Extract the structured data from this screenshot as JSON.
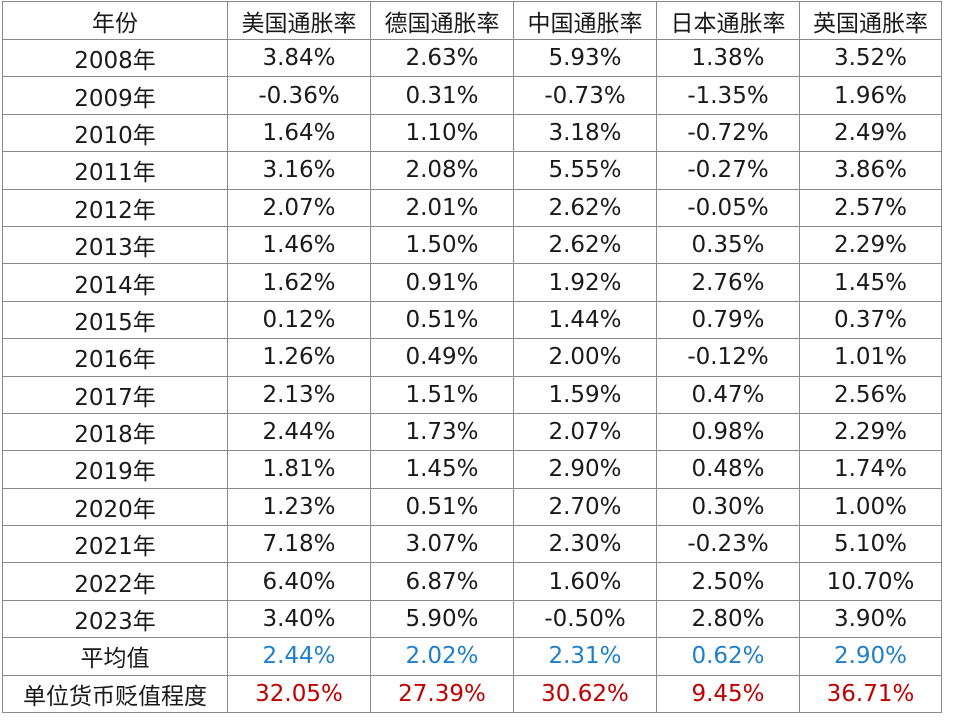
{
  "table": {
    "headers": [
      "年份",
      "美国通胀率",
      "德国通胀率",
      "中国通胀率",
      "日本通胀率",
      "英国通胀率"
    ],
    "rows": [
      {
        "year": "2008年",
        "values": [
          "3.84%",
          "2.63%",
          "5.93%",
          "1.38%",
          "3.52%"
        ]
      },
      {
        "year": "2009年",
        "values": [
          "-0.36%",
          "0.31%",
          "-0.73%",
          "-1.35%",
          "1.96%"
        ]
      },
      {
        "year": "2010年",
        "values": [
          "1.64%",
          "1.10%",
          "3.18%",
          "-0.72%",
          "2.49%"
        ]
      },
      {
        "year": "2011年",
        "values": [
          "3.16%",
          "2.08%",
          "5.55%",
          "-0.27%",
          "3.86%"
        ]
      },
      {
        "year": "2012年",
        "values": [
          "2.07%",
          "2.01%",
          "2.62%",
          "-0.05%",
          "2.57%"
        ]
      },
      {
        "year": "2013年",
        "values": [
          "1.46%",
          "1.50%",
          "2.62%",
          "0.35%",
          "2.29%"
        ]
      },
      {
        "year": "2014年",
        "values": [
          "1.62%",
          "0.91%",
          "1.92%",
          "2.76%",
          "1.45%"
        ]
      },
      {
        "year": "2015年",
        "values": [
          "0.12%",
          "0.51%",
          "1.44%",
          "0.79%",
          "0.37%"
        ]
      },
      {
        "year": "2016年",
        "values": [
          "1.26%",
          "0.49%",
          "2.00%",
          "-0.12%",
          "1.01%"
        ]
      },
      {
        "year": "2017年",
        "values": [
          "2.13%",
          "1.51%",
          "1.59%",
          "0.47%",
          "2.56%"
        ]
      },
      {
        "year": "2018年",
        "values": [
          "2.44%",
          "1.73%",
          "2.07%",
          "0.98%",
          "2.29%"
        ]
      },
      {
        "year": "2019年",
        "values": [
          "1.81%",
          "1.45%",
          "2.90%",
          "0.48%",
          "1.74%"
        ]
      },
      {
        "year": "2020年",
        "values": [
          "1.23%",
          "0.51%",
          "2.70%",
          "0.30%",
          "1.00%"
        ]
      },
      {
        "year": "2021年",
        "values": [
          "7.18%",
          "3.07%",
          "2.30%",
          "-0.23%",
          "5.10%"
        ]
      },
      {
        "year": "2022年",
        "values": [
          "6.40%",
          "6.87%",
          "1.60%",
          "2.50%",
          "10.70%"
        ]
      },
      {
        "year": "2023年",
        "values": [
          "3.40%",
          "5.90%",
          "-0.50%",
          "2.80%",
          "3.90%"
        ]
      }
    ],
    "average": {
      "label": "平均值",
      "values": [
        "2.44%",
        "2.02%",
        "2.31%",
        "0.62%",
        "2.90%"
      ]
    },
    "devaluation": {
      "label": "单位货币贬值程度",
      "values": [
        "32.05%",
        "27.39%",
        "30.62%",
        "9.45%",
        "36.71%"
      ]
    }
  },
  "colors": {
    "average_text": "#1f7fc9",
    "devaluation_text": "#c00000",
    "grid": "#8a8a8a"
  }
}
